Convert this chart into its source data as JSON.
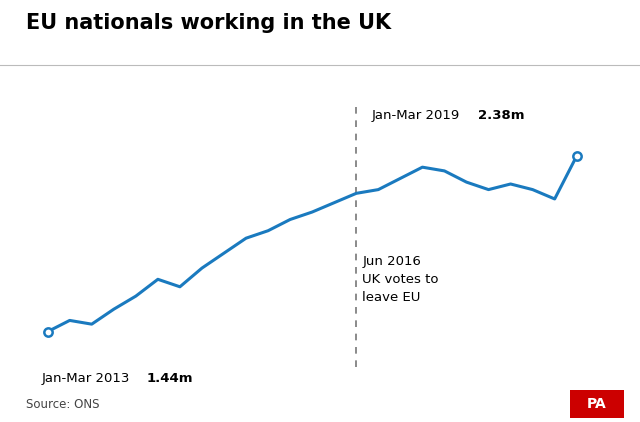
{
  "title": "EU nationals working in the UK",
  "source": "Source: ONS",
  "line_color": "#1a7abf",
  "background_color": "#ffffff",
  "x_values": [
    2013.0,
    2013.25,
    2013.5,
    2013.75,
    2014.0,
    2014.25,
    2014.5,
    2014.75,
    2015.0,
    2015.25,
    2015.5,
    2015.75,
    2016.0,
    2016.25,
    2016.5,
    2016.75,
    2017.0,
    2017.25,
    2017.5,
    2017.75,
    2018.0,
    2018.25,
    2018.5,
    2018.75,
    2019.0
  ],
  "y_values": [
    1.44,
    1.5,
    1.48,
    1.56,
    1.63,
    1.72,
    1.68,
    1.78,
    1.86,
    1.94,
    1.98,
    2.04,
    2.08,
    2.13,
    2.18,
    2.2,
    2.26,
    2.32,
    2.3,
    2.24,
    2.2,
    2.23,
    2.2,
    2.15,
    2.38
  ],
  "start_label": "Jan-Mar 2013 ",
  "start_value": "1.44m",
  "end_label": "Jan-Mar 2019 ",
  "end_value": "2.38m",
  "vline_x": 2016.5,
  "vline_label": "Jun 2016\nUK votes to\nleave EU",
  "ylim": [
    1.25,
    2.65
  ],
  "xlim": [
    2012.75,
    2019.5
  ],
  "title_fontsize": 15,
  "label_fontsize": 9.5,
  "source_fontsize": 8.5
}
